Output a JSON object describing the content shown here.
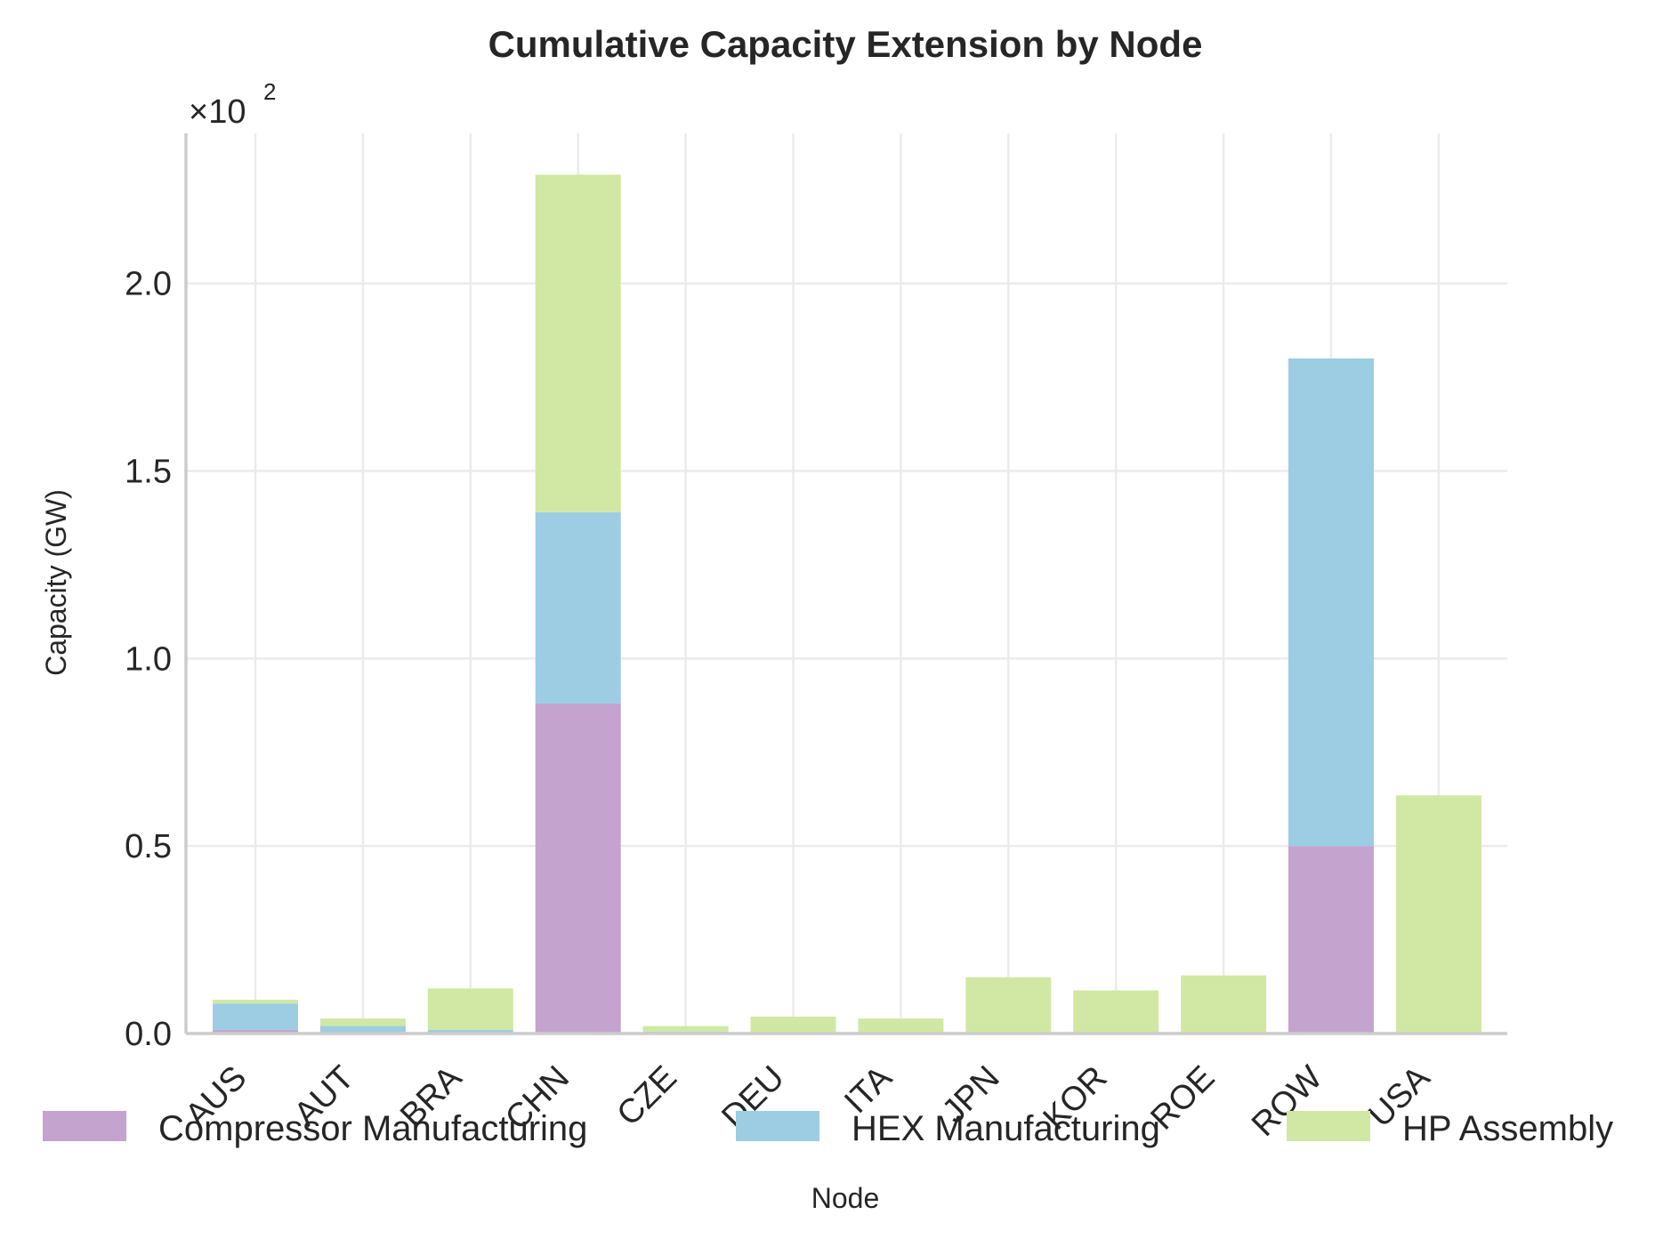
{
  "chart_data": {
    "type": "bar",
    "stacked": true,
    "title": "Cumulative Capacity Extension by Node",
    "xlabel": "Node",
    "ylabel": "Capacity (GW)",
    "y_multiplier_label": "×10",
    "y_multiplier_exponent": "2",
    "y_scale_factor": 100,
    "ylim": [
      0,
      2.4
    ],
    "yticks": [
      0.0,
      0.5,
      1.0,
      1.5,
      2.0
    ],
    "ytick_labels": [
      "0.0",
      "0.5",
      "1.0",
      "1.5",
      "2.0"
    ],
    "grid": true,
    "legend_position": "bottom",
    "categories": [
      "AUS",
      "AUT",
      "BRA",
      "CHN",
      "CZE",
      "DEU",
      "ITA",
      "JPN",
      "KOR",
      "ROE",
      "ROW",
      "USA"
    ],
    "series": [
      {
        "name": "Compressor Manufacturing",
        "color": "#c5a3cf",
        "values": [
          0.01,
          0.0,
          0.0,
          0.88,
          0.0,
          0.0,
          0.0,
          0.0,
          0.0,
          0.0,
          0.5,
          0.0
        ]
      },
      {
        "name": "HEX Manufacturing",
        "color": "#9ccde2",
        "values": [
          0.07,
          0.02,
          0.01,
          0.51,
          0.005,
          0.0,
          0.0,
          0.0,
          0.0,
          0.0,
          1.3,
          0.0
        ]
      },
      {
        "name": "HP Assembly",
        "color": "#d0e8a3",
        "values": [
          0.01,
          0.02,
          0.11,
          0.9,
          0.015,
          0.045,
          0.04,
          0.15,
          0.115,
          0.155,
          0.0,
          0.635
        ]
      }
    ]
  }
}
